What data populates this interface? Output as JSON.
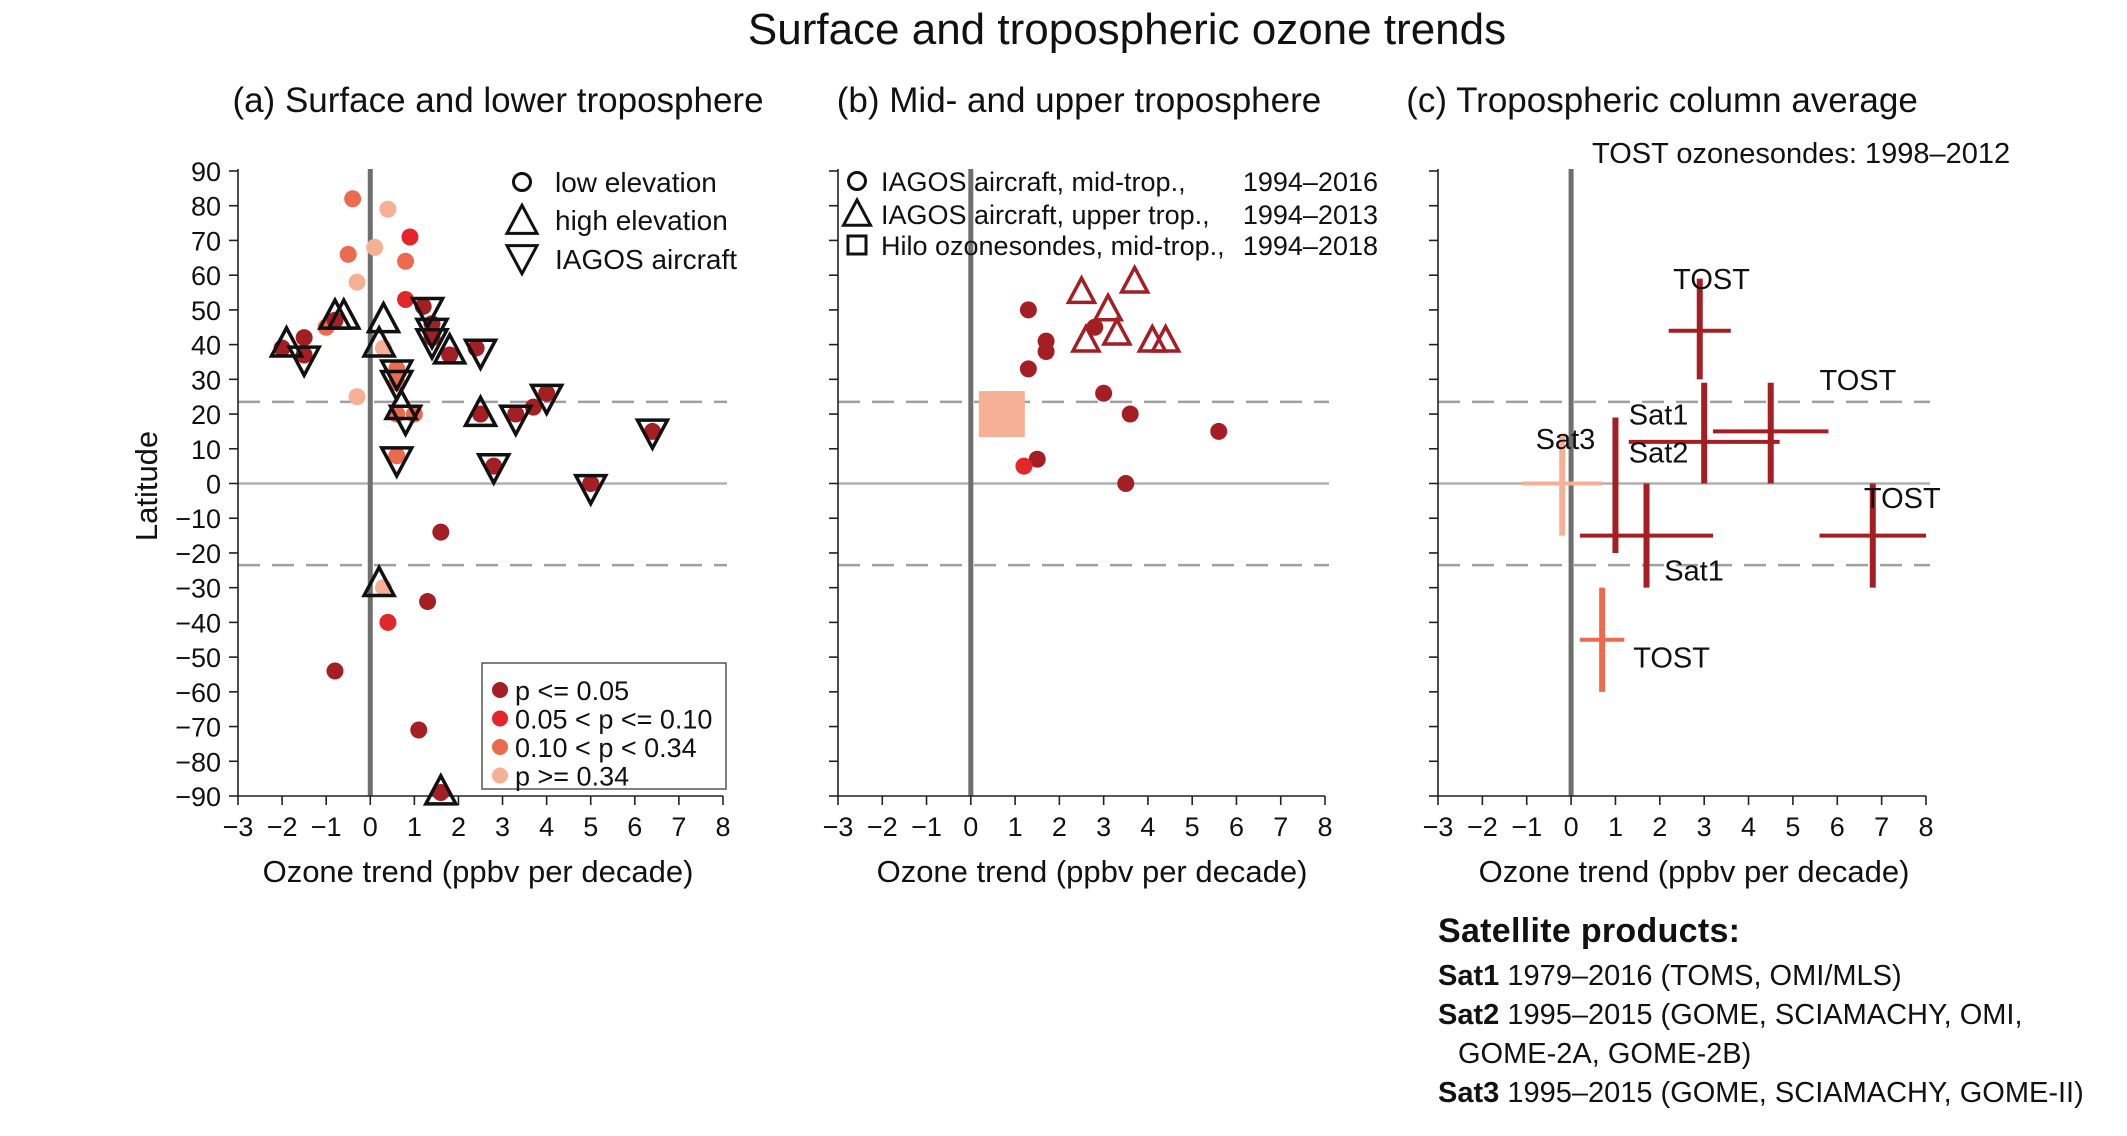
{
  "title": "Surface and tropospheric ozone trends",
  "common": {
    "xlabel": "Ozone trend (ppbv per decade)",
    "ylabel": "Latitude",
    "xticks": [
      -3,
      -2,
      -1,
      0,
      1,
      2,
      3,
      4,
      5,
      6,
      7,
      8
    ],
    "yticks": [
      90,
      80,
      70,
      60,
      50,
      40,
      30,
      20,
      10,
      0,
      -10,
      -20,
      -30,
      -40,
      -50,
      -60,
      -70,
      -80,
      -90
    ],
    "colors": {
      "sig": "#a41f24",
      "near": "#e3262c",
      "weak": "#ec6a4d",
      "none": "#f6b095"
    }
  },
  "panel_a": {
    "title": "(a) Surface and lower troposphere",
    "marker_legend": [
      {
        "shape": "circle",
        "label": "low elevation"
      },
      {
        "shape": "triangle-up",
        "label": "high elevation"
      },
      {
        "shape": "triangle-down",
        "label": "IAGOS aircraft"
      }
    ],
    "pvalue_legend": [
      {
        "cls": "sig",
        "label": "p <= 0.05"
      },
      {
        "cls": "near",
        "label": "0.05 < p <= 0.10"
      },
      {
        "cls": "weak",
        "label": "0.10 < p < 0.34"
      },
      {
        "cls": "none",
        "label": "p >= 0.34"
      }
    ]
  },
  "panel_b": {
    "title": "(b) Mid- and upper troposphere",
    "legend": [
      {
        "shape": "circle",
        "label": "IAGOS aircraft, mid-trop.,",
        "period": "1994–2016"
      },
      {
        "shape": "triangle-up",
        "label": "IAGOS aircraft, upper trop.,",
        "period": "1994–2013"
      },
      {
        "shape": "square",
        "label": "Hilo ozonesondes, mid-trop.,",
        "period": "1994–2018"
      }
    ]
  },
  "panel_c": {
    "title": "(c) Tropospheric column average",
    "subtitle": "TOST ozonesondes: 1998–2012"
  },
  "chart_data": [
    {
      "type": "scatter",
      "title": "(a) Surface and lower troposphere",
      "xlabel": "Ozone trend (ppbv per decade)",
      "ylabel": "Latitude",
      "xlim": [
        -3,
        8
      ],
      "ylim": [
        -90,
        90
      ],
      "reference_lines": {
        "solid_vertical_x": 0,
        "solid_horizontal_y": 0,
        "dashed_horizontal_y": [
          23.5,
          -23.5
        ]
      },
      "series": [
        {
          "name": "low elevation",
          "marker": "circle",
          "points": [
            {
              "x": -0.4,
              "y": 82,
              "c": "weak"
            },
            {
              "x": 0.4,
              "y": 79,
              "c": "none"
            },
            {
              "x": 0.9,
              "y": 71,
              "c": "near"
            },
            {
              "x": -0.5,
              "y": 66,
              "c": "weak"
            },
            {
              "x": 0.1,
              "y": 68,
              "c": "none"
            },
            {
              "x": 0.8,
              "y": 64,
              "c": "weak"
            },
            {
              "x": -0.3,
              "y": 58,
              "c": "none"
            },
            {
              "x": 0.8,
              "y": 53,
              "c": "near"
            },
            {
              "x": 1.2,
              "y": 51,
              "c": "sig"
            },
            {
              "x": 1.4,
              "y": 46,
              "c": "sig"
            },
            {
              "x": 1.4,
              "y": 42,
              "c": "sig"
            },
            {
              "x": 1.8,
              "y": 37,
              "c": "sig"
            },
            {
              "x": 2.4,
              "y": 39,
              "c": "sig"
            },
            {
              "x": -2.0,
              "y": 39,
              "c": "sig"
            },
            {
              "x": -1.5,
              "y": 42,
              "c": "sig"
            },
            {
              "x": -1.5,
              "y": 37,
              "c": "sig"
            },
            {
              "x": -1.0,
              "y": 45,
              "c": "weak"
            },
            {
              "x": -0.8,
              "y": 47,
              "c": "sig"
            },
            {
              "x": 0.3,
              "y": 39,
              "c": "none"
            },
            {
              "x": 0.6,
              "y": 33,
              "c": "weak"
            },
            {
              "x": 0.6,
              "y": 29,
              "c": "weak"
            },
            {
              "x": -0.3,
              "y": 25,
              "c": "none"
            },
            {
              "x": 0.6,
              "y": 20,
              "c": "weak"
            },
            {
              "x": 1.0,
              "y": 20,
              "c": "weak"
            },
            {
              "x": 0.6,
              "y": 8,
              "c": "weak"
            },
            {
              "x": 2.5,
              "y": 20,
              "c": "sig"
            },
            {
              "x": 2.8,
              "y": 5,
              "c": "sig"
            },
            {
              "x": 3.3,
              "y": 20,
              "c": "sig"
            },
            {
              "x": 3.7,
              "y": 22,
              "c": "sig"
            },
            {
              "x": 4.0,
              "y": 26,
              "c": "sig"
            },
            {
              "x": 5.0,
              "y": 0,
              "c": "sig"
            },
            {
              "x": 6.4,
              "y": 15,
              "c": "sig"
            },
            {
              "x": 1.6,
              "y": -14,
              "c": "sig"
            },
            {
              "x": 0.3,
              "y": -30,
              "c": "none"
            },
            {
              "x": 1.3,
              "y": -34,
              "c": "sig"
            },
            {
              "x": 0.4,
              "y": -40,
              "c": "near"
            },
            {
              "x": -0.8,
              "y": -54,
              "c": "sig"
            },
            {
              "x": 1.1,
              "y": -71,
              "c": "sig"
            },
            {
              "x": 1.6,
              "y": -89,
              "c": "sig"
            }
          ]
        },
        {
          "name": "high elevation",
          "marker": "triangle-up",
          "points": [
            {
              "x": -1.9,
              "y": 40
            },
            {
              "x": -0.8,
              "y": 48
            },
            {
              "x": -0.6,
              "y": 48
            },
            {
              "x": 0.3,
              "y": 47
            },
            {
              "x": 0.2,
              "y": 40
            },
            {
              "x": 1.8,
              "y": 38
            },
            {
              "x": 2.5,
              "y": 20
            },
            {
              "x": 0.7,
              "y": 22
            },
            {
              "x": 0.2,
              "y": -29
            },
            {
              "x": 1.6,
              "y": -89
            }
          ]
        },
        {
          "name": "IAGOS aircraft",
          "marker": "triangle-down",
          "points": [
            {
              "x": -1.5,
              "y": 36
            },
            {
              "x": 1.3,
              "y": 50
            },
            {
              "x": 1.4,
              "y": 44
            },
            {
              "x": 1.4,
              "y": 41
            },
            {
              "x": 2.5,
              "y": 38
            },
            {
              "x": 0.6,
              "y": 32
            },
            {
              "x": 0.6,
              "y": 29
            },
            {
              "x": 0.8,
              "y": 19
            },
            {
              "x": 0.6,
              "y": 7
            },
            {
              "x": 2.8,
              "y": 5
            },
            {
              "x": 3.3,
              "y": 19
            },
            {
              "x": 4.0,
              "y": 25
            },
            {
              "x": 5.0,
              "y": -1
            },
            {
              "x": 6.4,
              "y": 15
            }
          ]
        }
      ]
    },
    {
      "type": "scatter",
      "title": "(b) Mid- and upper troposphere",
      "xlabel": "Ozone trend (ppbv per decade)",
      "xlim": [
        -3,
        8
      ],
      "ylim": [
        -90,
        90
      ],
      "series": [
        {
          "name": "IAGOS aircraft, mid-trop.",
          "marker": "circle",
          "points": [
            {
              "x": 1.3,
              "y": 50,
              "c": "sig"
            },
            {
              "x": 1.7,
              "y": 41,
              "c": "sig"
            },
            {
              "x": 1.7,
              "y": 38,
              "c": "sig"
            },
            {
              "x": 1.3,
              "y": 33,
              "c": "sig"
            },
            {
              "x": 2.8,
              "y": 45,
              "c": "sig"
            },
            {
              "x": 3.0,
              "y": 26,
              "c": "sig"
            },
            {
              "x": 3.6,
              "y": 20,
              "c": "sig"
            },
            {
              "x": 5.6,
              "y": 15,
              "c": "sig"
            },
            {
              "x": 1.5,
              "y": 7,
              "c": "sig"
            },
            {
              "x": 1.2,
              "y": 5,
              "c": "near"
            },
            {
              "x": 3.5,
              "y": 0,
              "c": "sig"
            }
          ]
        },
        {
          "name": "IAGOS aircraft, upper trop.",
          "marker": "triangle-up",
          "points": [
            {
              "x": 2.5,
              "y": 55,
              "c": "sig"
            },
            {
              "x": 3.7,
              "y": 58,
              "c": "sig"
            },
            {
              "x": 3.1,
              "y": 50,
              "c": "sig"
            },
            {
              "x": 2.6,
              "y": 41,
              "c": "sig"
            },
            {
              "x": 3.3,
              "y": 43,
              "c": "sig"
            },
            {
              "x": 4.1,
              "y": 41,
              "c": "sig"
            },
            {
              "x": 4.4,
              "y": 41,
              "c": "sig"
            }
          ]
        },
        {
          "name": "Hilo ozonesondes, mid-trop.",
          "marker": "square",
          "points": [
            {
              "x": 0.7,
              "y": 20,
              "c": "none"
            }
          ]
        }
      ]
    },
    {
      "type": "scatter",
      "title": "(c) Tropospheric column average",
      "xlabel": "Ozone trend (ppbv per decade)",
      "xlim": [
        -3,
        8
      ],
      "ylim": [
        -90,
        90
      ],
      "series": [
        {
          "name": "TOST",
          "marker": "cross",
          "points": [
            {
              "x": 2.9,
              "y": 44,
              "xerr": 0.7,
              "ylo": 30,
              "yhi": 59,
              "c": "sig"
            },
            {
              "x": 4.5,
              "y": 15,
              "xerr": 1.3,
              "ylo": 0,
              "yhi": 29,
              "c": "sig"
            },
            {
              "x": 6.8,
              "y": -15,
              "xerr": 1.2,
              "ylo": -30,
              "yhi": 0,
              "c": "sig"
            },
            {
              "x": 0.7,
              "y": -45,
              "xerr": 0.5,
              "ylo": -60,
              "yhi": -30,
              "c": "weak"
            }
          ]
        },
        {
          "name": "Sat1",
          "marker": "cross",
          "points": [
            {
              "x": 3.0,
              "y": 12,
              "xerr": 1.7,
              "ylo": 0,
              "yhi": 29,
              "c": "sig"
            },
            {
              "x": 1.7,
              "y": -15,
              "xerr": 1.5,
              "ylo": -30,
              "yhi": 0,
              "c": "sig"
            }
          ]
        },
        {
          "name": "Sat2",
          "marker": "cross",
          "points": [
            {
              "x": 1.0,
              "y": 0,
              "xerr": 0,
              "ylo": -20,
              "yhi": 19,
              "c": "sig"
            }
          ]
        },
        {
          "name": "Sat3",
          "marker": "cross",
          "points": [
            {
              "x": -0.2,
              "y": 0,
              "xerr": 0.9,
              "ylo": -15,
              "yhi": 14,
              "c": "none"
            }
          ]
        }
      ],
      "labels": [
        {
          "text": "TOST",
          "x": 2.3,
          "y": 56
        },
        {
          "text": "TOST",
          "x": 5.6,
          "y": 27
        },
        {
          "text": "TOST",
          "x": 6.6,
          "y": -7
        },
        {
          "text": "TOST",
          "x": 1.4,
          "y": -53
        },
        {
          "text": "Sat1",
          "x": 1.3,
          "y": 17
        },
        {
          "text": "Sat2",
          "x": 1.3,
          "y": 6
        },
        {
          "text": "Sat3",
          "x": -0.8,
          "y": 10
        },
        {
          "text": "Sat1",
          "x": 2.1,
          "y": -28
        }
      ]
    }
  ],
  "satellite_products": {
    "heading": "Satellite products:",
    "lines": [
      {
        "key": "Sat1",
        "text": " 1979–2016 (TOMS, OMI/MLS)"
      },
      {
        "key": "Sat2",
        "text": " 1995–2015 (GOME, SCIAMACHY, OMI,"
      },
      {
        "key": "",
        "text": "GOME-2A, GOME-2B)"
      },
      {
        "key": "Sat3",
        "text": " 1995–2015 (GOME, SCIAMACHY, GOME-II)"
      }
    ]
  }
}
